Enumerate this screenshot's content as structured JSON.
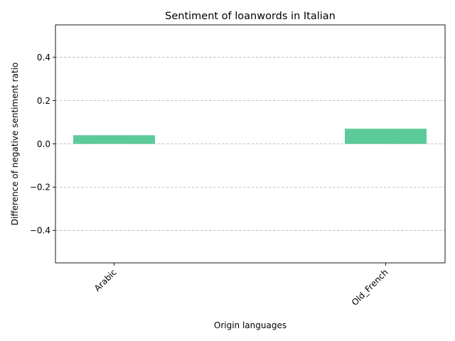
{
  "chart_data": {
    "type": "bar",
    "title": "Sentiment of loanwords in Italian",
    "xlabel": "Origin languages",
    "ylabel": "Difference of negative sentiment ratio",
    "categories": [
      "Arabic",
      "Old_French"
    ],
    "values": [
      0.04,
      0.07
    ],
    "ylim": [
      -0.55,
      0.55
    ],
    "yticks": [
      -0.4,
      -0.2,
      0.0,
      0.2,
      0.4
    ],
    "ytick_labels": [
      "−0.4",
      "−0.2",
      "0.0",
      "0.2",
      "0.4"
    ],
    "grid": "horizontal-dashed",
    "legend": "none",
    "colors": {
      "bar": "#5ccb9b"
    }
  }
}
